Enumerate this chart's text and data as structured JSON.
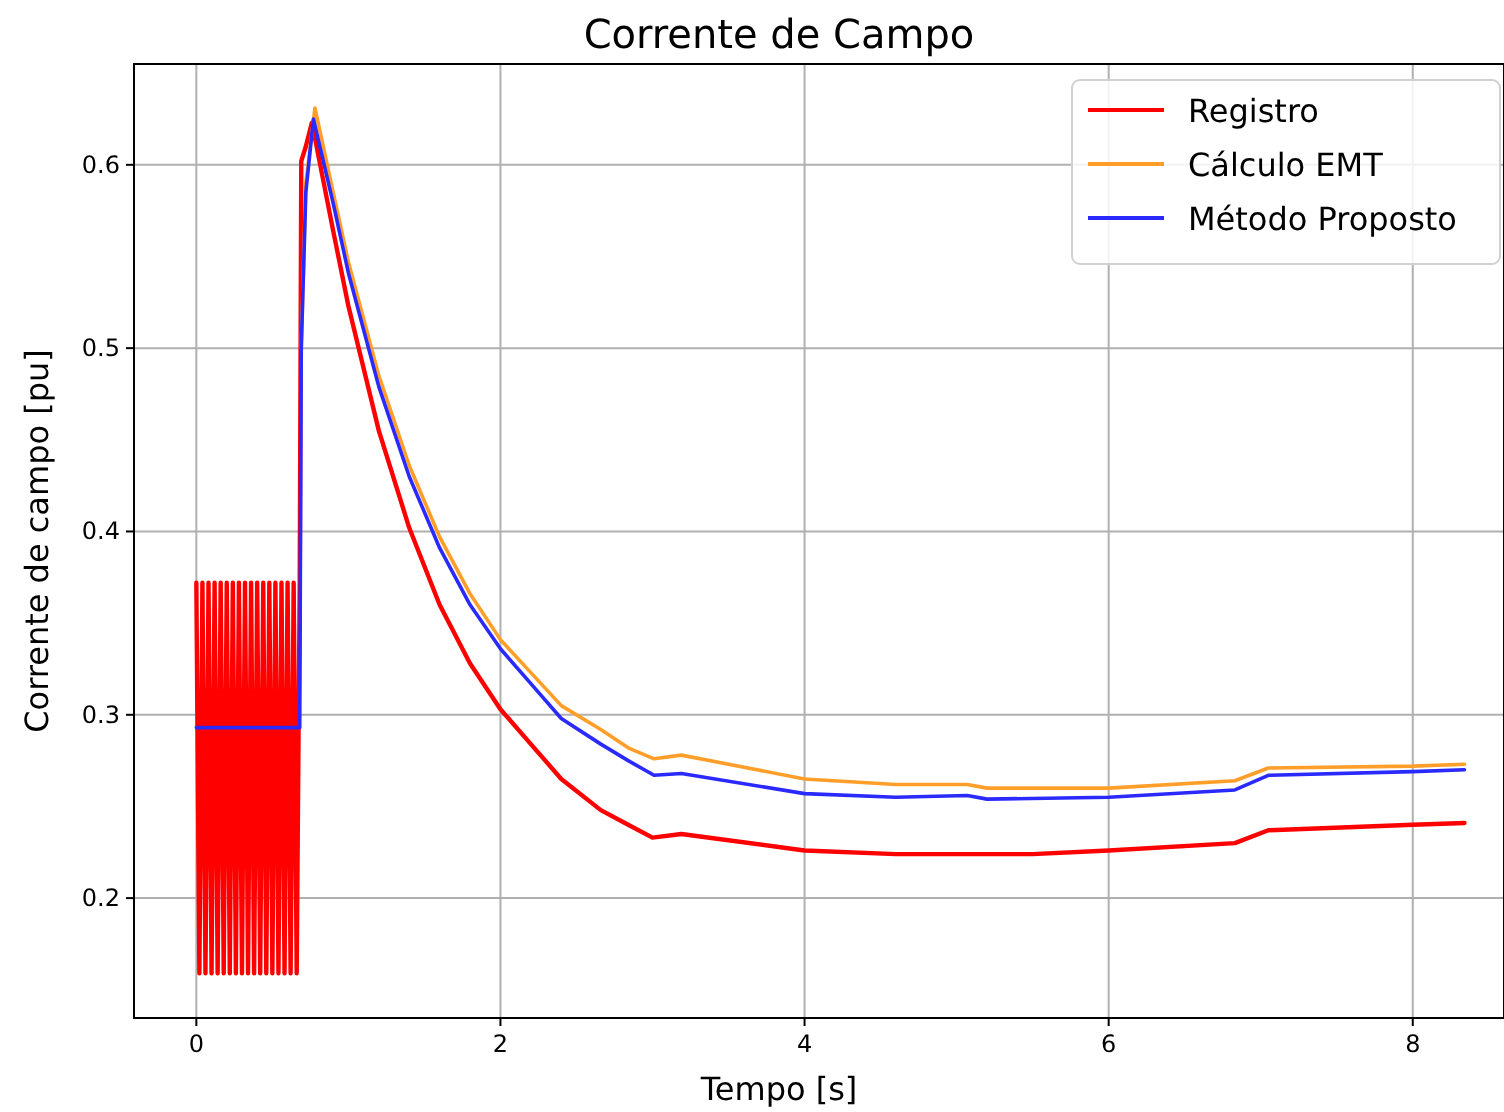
{
  "chart_data": {
    "type": "line",
    "title": "Corrente de Campo",
    "xlabel": "Tempo [s]",
    "ylabel": "Corrente de campo [pu]",
    "xlim": [
      -0.41,
      8.6
    ],
    "ylim": [
      0.1346,
      0.655
    ],
    "xticks": [
      0,
      2,
      4,
      6,
      8
    ],
    "yticks": [
      0.2,
      0.3,
      0.4,
      0.5,
      0.6
    ],
    "grid": true,
    "legend": "top right",
    "line_style": "solid",
    "marker": "none",
    "series": [
      {
        "name": "Registro",
        "color": "#ff0000",
        "x": [
          0,
          0.02,
          0.04,
          0.06,
          0.08,
          0.1,
          0.12,
          0.14,
          0.16,
          0.18,
          0.2,
          0.22,
          0.24,
          0.26,
          0.28,
          0.3,
          0.32,
          0.34,
          0.36,
          0.38,
          0.4,
          0.42,
          0.44,
          0.46,
          0.48,
          0.5,
          0.52,
          0.54,
          0.56,
          0.58,
          0.6,
          0.62,
          0.64,
          0.66,
          0.68,
          0.69,
          0.72,
          0.76,
          0.9,
          1.0,
          1.2,
          1.4,
          1.6,
          1.8,
          2.0,
          2.2,
          2.4,
          2.66,
          2.84,
          3.0,
          3.19,
          4.0,
          4.6,
          5.5,
          6.0,
          6.83,
          7.05,
          8.0,
          8.34
        ],
        "values": [
          0.372,
          0.159,
          0.372,
          0.159,
          0.372,
          0.159,
          0.372,
          0.159,
          0.372,
          0.159,
          0.372,
          0.159,
          0.372,
          0.159,
          0.372,
          0.159,
          0.372,
          0.159,
          0.372,
          0.159,
          0.372,
          0.159,
          0.372,
          0.159,
          0.372,
          0.159,
          0.372,
          0.159,
          0.372,
          0.159,
          0.372,
          0.159,
          0.372,
          0.159,
          0.372,
          0.602,
          0.61,
          0.623,
          0.564,
          0.523,
          0.455,
          0.402,
          0.36,
          0.328,
          0.303,
          0.284,
          0.265,
          0.248,
          0.24,
          0.233,
          0.235,
          0.226,
          0.224,
          0.224,
          0.226,
          0.23,
          0.237,
          0.24,
          0.241
        ]
      },
      {
        "name": "Cálculo EMT",
        "color": "#ff9f2a",
        "x": [
          0.69,
          0.72,
          0.78,
          0.9,
          1.0,
          1.2,
          1.4,
          1.6,
          1.8,
          2.0,
          2.2,
          2.4,
          2.66,
          2.84,
          3.01,
          3.19,
          4.0,
          4.6,
          5.07,
          5.2,
          6.0,
          6.83,
          7.05,
          8.0,
          8.34
        ],
        "values": [
          0.5,
          0.59,
          0.631,
          0.585,
          0.547,
          0.485,
          0.436,
          0.397,
          0.366,
          0.341,
          0.323,
          0.305,
          0.292,
          0.282,
          0.276,
          0.278,
          0.265,
          0.262,
          0.262,
          0.26,
          0.26,
          0.264,
          0.271,
          0.272,
          0.273
        ]
      },
      {
        "name": "Método Proposto",
        "color": "#2a2aff",
        "x": [
          0,
          0.68,
          0.69,
          0.72,
          0.77,
          0.9,
          1.0,
          1.2,
          1.4,
          1.6,
          1.8,
          2.0,
          2.2,
          2.4,
          2.66,
          2.84,
          3.01,
          3.19,
          4.0,
          4.6,
          5.07,
          5.2,
          6.0,
          6.83,
          7.05,
          8.0,
          8.34
        ],
        "values": [
          0.293,
          0.293,
          0.5,
          0.585,
          0.625,
          0.579,
          0.541,
          0.479,
          0.43,
          0.391,
          0.36,
          0.336,
          0.317,
          0.298,
          0.284,
          0.275,
          0.267,
          0.268,
          0.257,
          0.255,
          0.256,
          0.254,
          0.255,
          0.259,
          0.267,
          0.269,
          0.27
        ]
      }
    ]
  }
}
